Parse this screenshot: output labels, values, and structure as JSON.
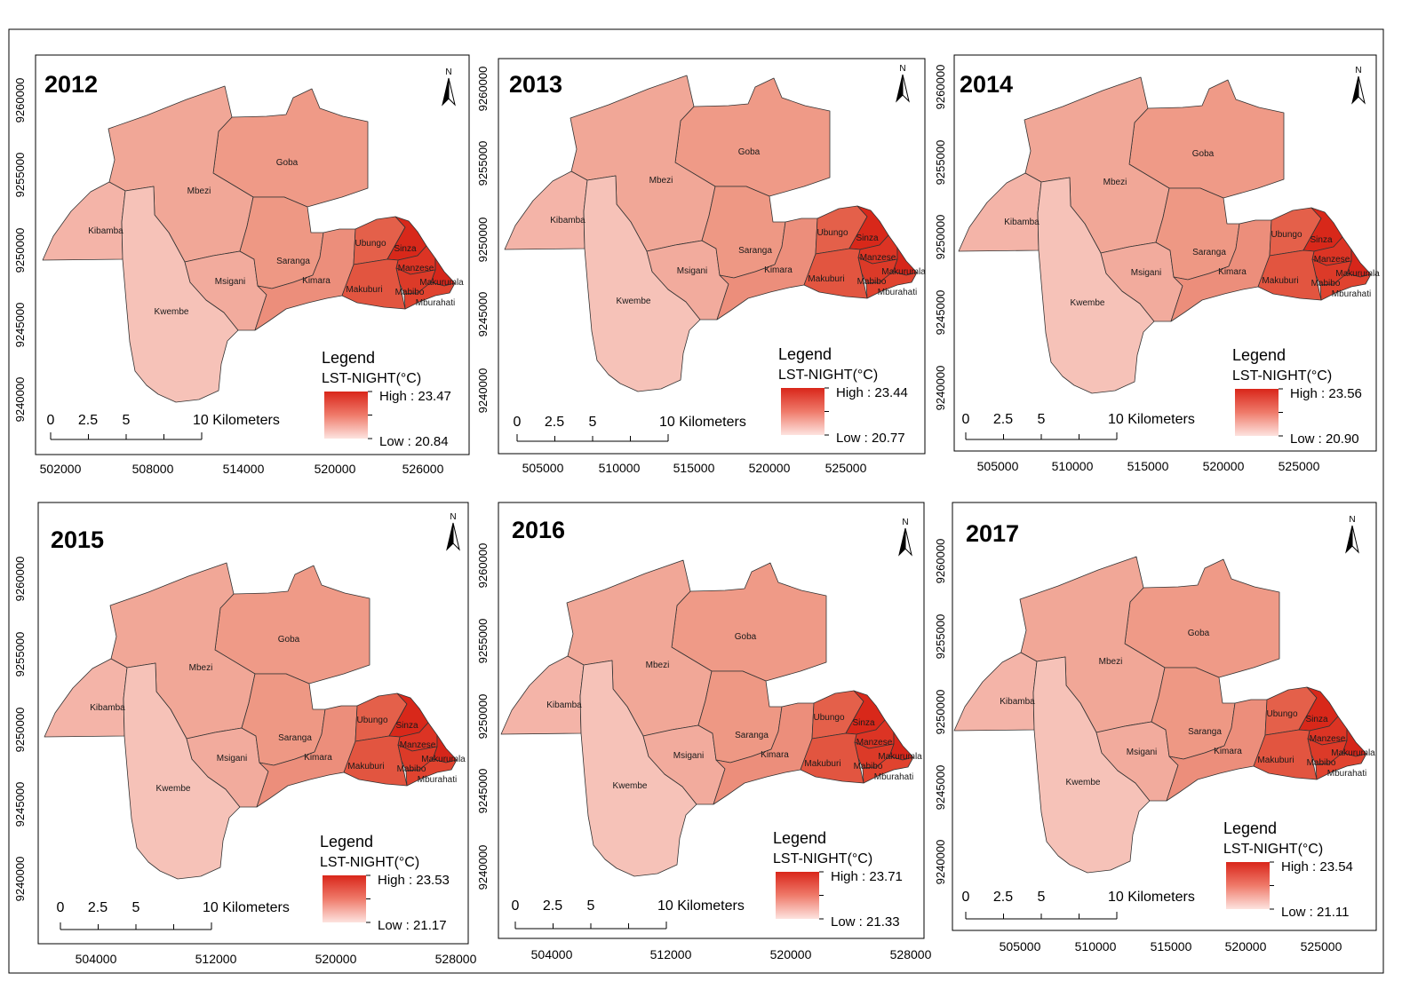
{
  "figure": {
    "legend_title": "Legend",
    "legend_subtitle": "LST-NIGHT(°C)",
    "north_label": "N",
    "scale_labels": [
      "0",
      "2.5",
      "5",
      "10 Kilometers"
    ],
    "legend_colors": {
      "high": "#d9261a",
      "mid": "#ef7a6a",
      "low": "#fde3df"
    },
    "boundary_color": "#333333"
  },
  "regions": [
    {
      "name": "Goba",
      "color": "#ef9a87"
    },
    {
      "name": "Mbezi",
      "color": "#f1a797"
    },
    {
      "name": "Kibamba",
      "color": "#f4b4a8"
    },
    {
      "name": "Kwembe",
      "color": "#f6c2b8"
    },
    {
      "name": "Msigani",
      "color": "#f2ab9d"
    },
    {
      "name": "Saranga",
      "color": "#ee9884"
    },
    {
      "name": "Kimara",
      "color": "#ec8e7b"
    },
    {
      "name": "Ubungo",
      "color": "#e4604a"
    },
    {
      "name": "Sinza",
      "color": "#d8281a"
    },
    {
      "name": "Manzese",
      "color": "#dc3424"
    },
    {
      "name": "Makurumla",
      "color": "#d6261a"
    },
    {
      "name": "Makuburi",
      "color": "#e25540"
    },
    {
      "name": "Mabibo",
      "color": "#dc3a28"
    },
    {
      "name": "Mburahati",
      "color": "#e0432f"
    }
  ],
  "panels": [
    {
      "year": "2012",
      "legend": {
        "high_label": "High : 23.47",
        "low_label": "Low : 20.84"
      },
      "x_ticks": [
        "502000",
        "508000",
        "514000",
        "520000",
        "526000"
      ],
      "y_ticks": [
        "9260000",
        "9255000",
        "9250000",
        "9245000",
        "9240000"
      ]
    },
    {
      "year": "2013",
      "legend": {
        "high_label": "High : 23.44",
        "low_label": "Low : 20.77"
      },
      "x_ticks": [
        "505000",
        "510000",
        "515000",
        "520000",
        "525000"
      ],
      "y_ticks": [
        "9260000",
        "9255000",
        "9250000",
        "9245000",
        "9240000"
      ]
    },
    {
      "year": "2014",
      "legend": {
        "high_label": "High : 23.56",
        "low_label": "Low : 20.90"
      },
      "x_ticks": [
        "505000",
        "510000",
        "515000",
        "520000",
        "525000"
      ],
      "y_ticks": [
        "9260000",
        "9255000",
        "9250000",
        "9245000",
        "9240000"
      ]
    },
    {
      "year": "2015",
      "legend": {
        "high_label": "High : 23.53",
        "low_label": "Low : 21.17"
      },
      "x_ticks": [
        "504000",
        "512000",
        "520000",
        "528000"
      ],
      "y_ticks": [
        "9260000",
        "9255000",
        "9250000",
        "9245000",
        "9240000"
      ]
    },
    {
      "year": "2016",
      "legend": {
        "high_label": "High : 23.71",
        "low_label": "Low : 21.33"
      },
      "x_ticks": [
        "504000",
        "512000",
        "520000",
        "528000"
      ],
      "y_ticks": [
        "9260000",
        "9255000",
        "9250000",
        "9245000",
        "9240000"
      ]
    },
    {
      "year": "2017",
      "legend": {
        "high_label": "High : 23.54",
        "low_label": "Low : 21.11"
      },
      "x_ticks": [
        "505000",
        "510000",
        "515000",
        "520000",
        "525000"
      ],
      "y_ticks": [
        "9260000",
        "9255000",
        "9250000",
        "9245000",
        "9240000"
      ]
    }
  ]
}
